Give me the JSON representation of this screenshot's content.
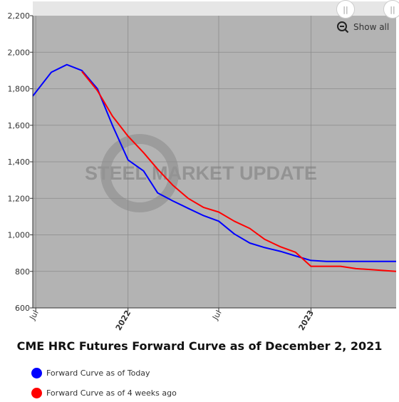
{
  "chart_data": {
    "type": "line",
    "title": "CME HRC Futures Forward Curve as of December 2, 2021",
    "watermark": "STEEL MARKET UPDATE",
    "ylim": [
      600,
      2200
    ],
    "y_ticks": [
      "600",
      "800",
      "1,000",
      "1,200",
      "1,400",
      "1,600",
      "1,800",
      "2,000",
      "2,200"
    ],
    "x_range": [
      "2021-06-25",
      "2023-06-20"
    ],
    "x_ticks": [
      {
        "date": "2021-07-01",
        "label": "Jul",
        "major": false
      },
      {
        "date": "2022-01-01",
        "label": "2022",
        "major": true
      },
      {
        "date": "2022-07-01",
        "label": "Jul",
        "major": false
      },
      {
        "date": "2023-01-01",
        "label": "2023",
        "major": true
      }
    ],
    "legend_position": "bottom-left",
    "show_all_label": "Show all",
    "series": [
      {
        "name": "Forward Curve as of Today",
        "color": "#0000ff",
        "points": [
          {
            "x": "2021-06-25",
            "y": 1760
          },
          {
            "x": "2021-08-01",
            "y": 1890
          },
          {
            "x": "2021-09-01",
            "y": 1932
          },
          {
            "x": "2021-10-01",
            "y": 1900
          },
          {
            "x": "2021-11-01",
            "y": 1800
          },
          {
            "x": "2021-12-01",
            "y": 1600
          },
          {
            "x": "2022-01-01",
            "y": 1410
          },
          {
            "x": "2022-02-01",
            "y": 1350
          },
          {
            "x": "2022-03-01",
            "y": 1230
          },
          {
            "x": "2022-04-01",
            "y": 1185
          },
          {
            "x": "2022-05-01",
            "y": 1145
          },
          {
            "x": "2022-06-01",
            "y": 1105
          },
          {
            "x": "2022-07-01",
            "y": 1075
          },
          {
            "x": "2022-08-01",
            "y": 1005
          },
          {
            "x": "2022-09-01",
            "y": 955
          },
          {
            "x": "2022-10-01",
            "y": 930
          },
          {
            "x": "2022-11-01",
            "y": 910
          },
          {
            "x": "2022-12-01",
            "y": 885
          },
          {
            "x": "2023-01-01",
            "y": 860
          },
          {
            "x": "2023-02-01",
            "y": 855
          },
          {
            "x": "2023-03-01",
            "y": 855
          },
          {
            "x": "2023-04-01",
            "y": 855
          },
          {
            "x": "2023-05-01",
            "y": 855
          },
          {
            "x": "2023-06-20",
            "y": 855
          }
        ]
      },
      {
        "name": "Forward Curve as of 4 weeks ago",
        "color": "#ff0000",
        "points": [
          {
            "x": "2021-10-01",
            "y": 1895
          },
          {
            "x": "2021-11-01",
            "y": 1790
          },
          {
            "x": "2021-12-01",
            "y": 1650
          },
          {
            "x": "2022-01-01",
            "y": 1540
          },
          {
            "x": "2022-02-01",
            "y": 1450
          },
          {
            "x": "2022-03-01",
            "y": 1360
          },
          {
            "x": "2022-04-01",
            "y": 1270
          },
          {
            "x": "2022-05-01",
            "y": 1200
          },
          {
            "x": "2022-06-01",
            "y": 1150
          },
          {
            "x": "2022-07-01",
            "y": 1125
          },
          {
            "x": "2022-08-01",
            "y": 1075
          },
          {
            "x": "2022-09-01",
            "y": 1035
          },
          {
            "x": "2022-10-01",
            "y": 975
          },
          {
            "x": "2022-11-01",
            "y": 935
          },
          {
            "x": "2022-12-01",
            "y": 905
          },
          {
            "x": "2023-01-01",
            "y": 828
          },
          {
            "x": "2023-02-01",
            "y": 828
          },
          {
            "x": "2023-03-01",
            "y": 828
          },
          {
            "x": "2023-04-01",
            "y": 815
          },
          {
            "x": "2023-05-01",
            "y": 810
          },
          {
            "x": "2023-06-20",
            "y": 800
          }
        ]
      }
    ]
  }
}
